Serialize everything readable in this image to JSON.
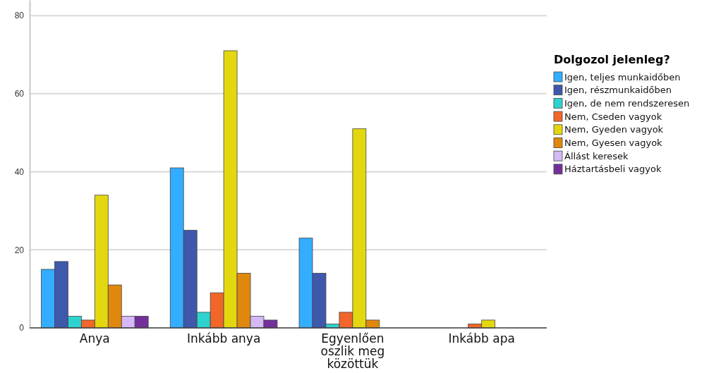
{
  "chart_data": {
    "type": "bar",
    "legend_title": "Dolgozol jelenleg?",
    "categories": [
      "Anya",
      "Inkább anya",
      "Egyenlően oszlik meg közöttük",
      "Inkább apa"
    ],
    "series": [
      {
        "name": "Igen, teljes munkaidőben",
        "color": "#33adff",
        "values": [
          15,
          41,
          23,
          null
        ]
      },
      {
        "name": "Igen, részmunkaidőben",
        "color": "#3e58ac",
        "values": [
          17,
          25,
          14,
          null
        ]
      },
      {
        "name": "Igen, de nem rendszeresen",
        "color": "#2ed3cf",
        "values": [
          3,
          4,
          1,
          null
        ]
      },
      {
        "name": "Nem, Cseden vagyok",
        "color": "#f2662a",
        "values": [
          2,
          9,
          4,
          1
        ]
      },
      {
        "name": "Nem, Gyeden vagyok",
        "color": "#e3d80f",
        "values": [
          34,
          71,
          51,
          2
        ]
      },
      {
        "name": "Nem, Gyesen vagyok",
        "color": "#e0880d",
        "values": [
          11,
          14,
          2,
          null
        ]
      },
      {
        "name": "Állást keresek",
        "color": "#d4b8f8",
        "values": [
          3,
          3,
          null,
          null
        ]
      },
      {
        "name": "Háztartásbeli vagyok",
        "color": "#74309a",
        "values": [
          3,
          2,
          null,
          null
        ]
      }
    ],
    "ylim": [
      0,
      84
    ],
    "yticks": [
      0,
      20,
      40,
      60,
      80
    ],
    "grid": "y",
    "legend": "right"
  }
}
